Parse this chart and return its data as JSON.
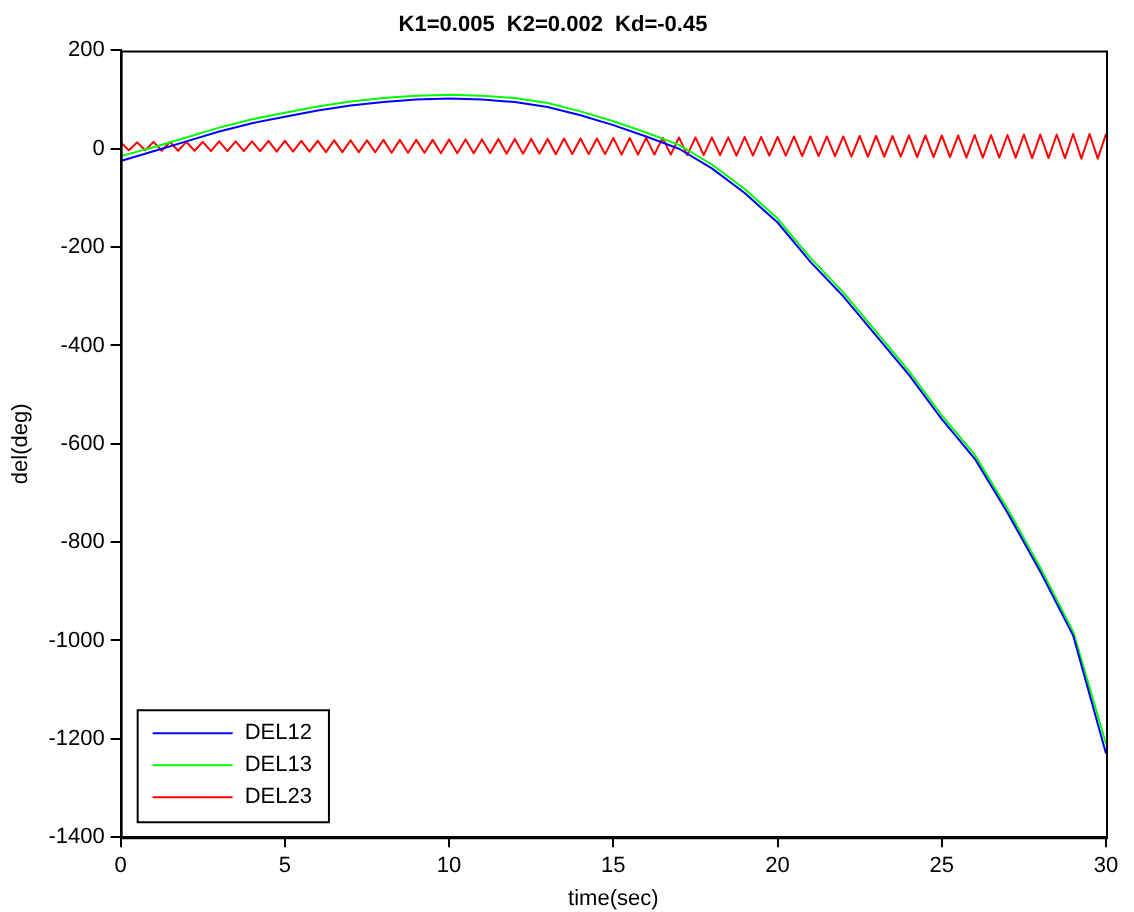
{
  "chart_data": {
    "type": "line",
    "title": "K1=0.005  K2=0.002  Kd=-0.45",
    "xlabel": "time(sec)",
    "ylabel": "del(deg)",
    "xlim": [
      0,
      30
    ],
    "xticks": [
      0,
      5,
      10,
      15,
      20,
      25,
      30
    ],
    "ylim": [
      -1400,
      200
    ],
    "yticks": [
      -1400,
      -1200,
      -1000,
      -800,
      -600,
      -400,
      -200,
      0,
      200
    ],
    "grid": false,
    "legend": "bottom left",
    "marker": "none",
    "line_style": "solid",
    "series": [
      {
        "name": "DEL12",
        "color": "#0000ff",
        "x": [
          0,
          1,
          2,
          3,
          4,
          5,
          6,
          7,
          8,
          9,
          10,
          11,
          12,
          13,
          14,
          15,
          16,
          17,
          18,
          19,
          20,
          21,
          22,
          23,
          24,
          25,
          26,
          27,
          28,
          29,
          30
        ],
        "values": [
          -25,
          -5,
          15,
          35,
          52,
          65,
          78,
          88,
          95,
          100,
          102,
          100,
          95,
          85,
          68,
          48,
          25,
          0,
          -40,
          -90,
          -150,
          -230,
          -300,
          -380,
          -460,
          -550,
          -630,
          -740,
          -860,
          -990,
          -1230
        ]
      },
      {
        "name": "DEL13",
        "color": "#00ff00",
        "x": [
          0,
          1,
          2,
          3,
          4,
          5,
          6,
          7,
          8,
          9,
          10,
          11,
          12,
          13,
          14,
          15,
          16,
          17,
          18,
          19,
          20,
          21,
          22,
          23,
          24,
          25,
          26,
          27,
          28,
          29,
          30
        ],
        "values": [
          -15,
          3,
          23,
          43,
          60,
          73,
          86,
          96,
          103,
          108,
          110,
          108,
          103,
          93,
          76,
          56,
          33,
          8,
          -32,
          -82,
          -142,
          -222,
          -292,
          -372,
          -452,
          -542,
          -622,
          -732,
          -852,
          -982,
          -1210
        ]
      },
      {
        "name": "DEL23",
        "color": "#ff0000",
        "x": [
          0,
          0.25,
          0.5,
          0.75,
          1,
          1.25,
          1.5,
          1.75,
          2,
          2.25,
          2.5,
          2.75,
          3,
          3.25,
          3.5,
          3.75,
          4,
          4.25,
          4.5,
          4.75,
          5,
          5.25,
          5.5,
          5.75,
          6,
          6.25,
          6.5,
          6.75,
          7,
          7.25,
          7.5,
          7.75,
          8,
          8.25,
          8.5,
          8.75,
          9,
          9.25,
          9.5,
          9.75,
          10,
          10.25,
          10.5,
          10.75,
          11,
          11.25,
          11.5,
          11.75,
          12,
          12.25,
          12.5,
          12.75,
          13,
          13.25,
          13.5,
          13.75,
          14,
          14.25,
          14.5,
          14.75,
          15,
          15.25,
          15.5,
          15.75,
          16,
          16.25,
          16.5,
          16.75,
          17,
          17.25,
          17.5,
          17.75,
          18,
          18.25,
          18.5,
          18.75,
          19,
          19.25,
          19.5,
          19.75,
          20,
          20.25,
          20.5,
          20.75,
          21,
          21.25,
          21.5,
          21.75,
          22,
          22.25,
          22.5,
          22.75,
          23,
          23.25,
          23.5,
          23.75,
          24,
          24.25,
          24.5,
          24.75,
          25,
          25.25,
          25.5,
          25.75,
          26,
          26.25,
          26.5,
          26.75,
          27,
          27.25,
          27.5,
          27.75,
          28,
          28.25,
          28.5,
          28.75,
          29,
          29.25,
          29.5,
          29.75,
          30
        ],
        "values": [
          13,
          -3,
          13,
          -3,
          14,
          -4,
          14,
          -4,
          14,
          -4,
          14,
          -5,
          15,
          -5,
          15,
          -5,
          15,
          -5,
          16,
          -6,
          16,
          -6,
          16,
          -6,
          16,
          -7,
          17,
          -7,
          17,
          -7,
          17,
          -7,
          18,
          -8,
          18,
          -8,
          18,
          -8,
          18,
          -9,
          19,
          -9,
          19,
          -9,
          19,
          -9,
          20,
          -10,
          20,
          -10,
          20,
          -10,
          20,
          -11,
          21,
          -11,
          21,
          -11,
          21,
          -11,
          22,
          -12,
          22,
          -12,
          22,
          -12,
          22,
          -12,
          23,
          -13,
          23,
          -13,
          23,
          -13,
          23,
          -14,
          24,
          -14,
          24,
          -14,
          24,
          -14,
          25,
          -15,
          25,
          -15,
          25,
          -15,
          25,
          -16,
          26,
          -16,
          26,
          -16,
          26,
          -16,
          27,
          -17,
          27,
          -17,
          27,
          -17,
          27,
          -18,
          28,
          -18,
          28,
          -18,
          28,
          -18,
          29,
          -19,
          29,
          -19,
          29,
          -19,
          30,
          -20,
          30,
          -20,
          30
        ]
      }
    ]
  }
}
